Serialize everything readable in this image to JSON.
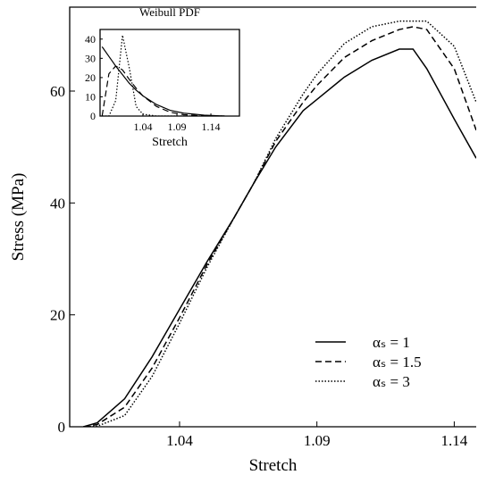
{
  "chart_data": [
    {
      "type": "line",
      "xlabel": "Stretch",
      "ylabel": "Stress (MPa)",
      "x": [
        1.005,
        1.01,
        1.02,
        1.03,
        1.04,
        1.05,
        1.06,
        1.067,
        1.075,
        1.085,
        1.09,
        1.1,
        1.11,
        1.12,
        1.125,
        1.13,
        1.14,
        1.148
      ],
      "series": [
        {
          "name": "αₛ = 1",
          "color": "#000000",
          "dash": "solid",
          "values": [
            0,
            0.7,
            5,
            12.5,
            21,
            29.5,
            37.5,
            43.5,
            50,
            56.5,
            58.5,
            62.5,
            65.5,
            67.5,
            67.5,
            64,
            55,
            48
          ]
        },
        {
          "name": "αₛ = 1.5",
          "color": "#000000",
          "dash": "dashed",
          "values": [
            0,
            0.4,
            3.5,
            10.5,
            19.5,
            29,
            37.5,
            43.5,
            51,
            58,
            61,
            66,
            69,
            71,
            71.5,
            71,
            64,
            53
          ]
        },
        {
          "name": "αₛ = 3",
          "color": "#000000",
          "dash": "dotted",
          "values": [
            0,
            0.1,
            2,
            9,
            18.5,
            28.5,
            37.5,
            43.5,
            51.5,
            59.5,
            63,
            68.5,
            71.5,
            72.5,
            72.5,
            72.5,
            68,
            58
          ]
        }
      ],
      "xlim": [
        1.0,
        1.148
      ],
      "xticks": [
        1.04,
        1.09,
        1.14
      ],
      "ylim": [
        0,
        75
      ],
      "yticks": [
        0,
        20,
        40,
        60
      ],
      "legend": "lower right",
      "grid": false
    },
    {
      "type": "line",
      "title": "Weibull PDF",
      "xlabel": "Stretch",
      "x": [
        0.98,
        0.99,
        1.0,
        1.01,
        1.02,
        1.03,
        1.04,
        1.06,
        1.08,
        1.1,
        1.13,
        1.16
      ],
      "series": [
        {
          "color": "#000000",
          "dash": "solid",
          "values": [
            36,
            31,
            26,
            21.5,
            17,
            13.5,
            10.5,
            6,
            3,
            1.5,
            0.5,
            0
          ]
        },
        {
          "color": "#000000",
          "dash": "dashed",
          "values": [
            0,
            22,
            26,
            24,
            19,
            14.5,
            10.5,
            5,
            2,
            0.7,
            0.1,
            0
          ]
        },
        {
          "color": "#000000",
          "dash": "dotted",
          "values": [
            0,
            0,
            8,
            42,
            25,
            5,
            1,
            0,
            0,
            0,
            0,
            0
          ]
        }
      ],
      "xlim": [
        0.977,
        1.182
      ],
      "xticks": [
        1.04,
        1.09,
        1.14
      ],
      "ylim": [
        0,
        45
      ],
      "yticks": [
        0,
        10,
        20,
        30,
        40
      ],
      "grid": false
    }
  ]
}
